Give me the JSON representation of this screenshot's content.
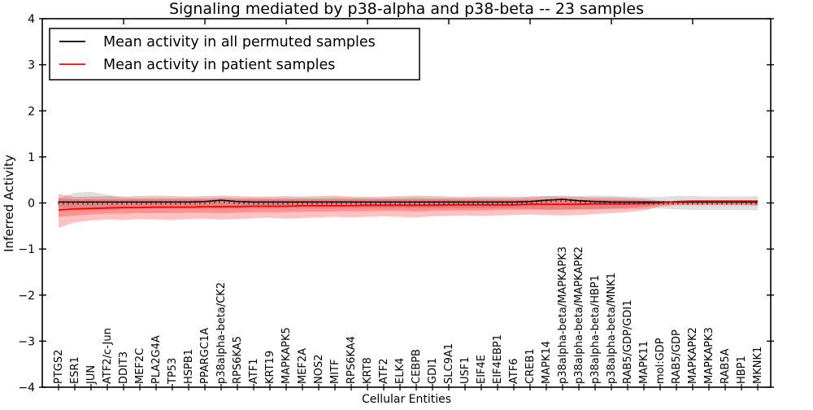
{
  "chart_data": {
    "type": "line",
    "title": "Signaling mediated by p38-alpha and p38-beta -- 23 samples",
    "xlabel": "Cellular Entities",
    "ylabel": "Inferred Activity",
    "ylim": [
      -4,
      4
    ],
    "grid": false,
    "legend_position": "upper left",
    "yticks": [
      {
        "value": 4,
        "label": "4"
      },
      {
        "value": 3,
        "label": "3"
      },
      {
        "value": 2,
        "label": "2"
      },
      {
        "value": 1,
        "label": "1"
      },
      {
        "value": 0,
        "label": "0"
      },
      {
        "value": -1,
        "label": "−1"
      },
      {
        "value": -2,
        "label": "−2"
      },
      {
        "value": -3,
        "label": "−3"
      },
      {
        "value": -4,
        "label": "−4"
      }
    ],
    "categories": [
      "PTGS2",
      "ESR1",
      "JUN",
      "ATF2/c-Jun",
      "DDIT3",
      "MEF2C",
      "PLA2G4A",
      "TP53",
      "HSPB1",
      "PPARGC1A",
      "p38alpha-beta/CK2",
      "RPS6KA5",
      "ATF1",
      "KRT19",
      "MAPKAPK5",
      "MEF2A",
      "NOS2",
      "MITF",
      "RPS6KA4",
      "KRT8",
      "ATF2",
      "ELK4",
      "CEBPB",
      "GDI1",
      "SLC9A1",
      "USF1",
      "EIF4E",
      "EIF4EBP1",
      "ATF6",
      "CREB1",
      "MAPK14",
      "p38alpha-beta/MAPKAPK3",
      "p38alpha-beta/MAPKAPK2",
      "p38alpha-beta/HBP1",
      "p38alpha-beta/MNK1",
      "RAB5/GDP/GDI1",
      "MAPK11",
      "mol:GDP",
      "RAB5/GDP",
      "MAPKAPK2",
      "MAPKAPK3",
      "RAB5A",
      "HBP1",
      "MKNK1"
    ],
    "series": [
      {
        "name": "Mean activity in all permuted samples",
        "color": "#000000",
        "values": [
          0.02,
          0.02,
          0.02,
          0.02,
          0.02,
          0.02,
          0.02,
          0.02,
          0.02,
          0.03,
          0.06,
          0.03,
          0.02,
          0.02,
          0.02,
          0.02,
          0.02,
          0.02,
          0.02,
          0.02,
          0.02,
          0.02,
          0.02,
          0.02,
          0.02,
          0.02,
          0.02,
          0.02,
          0.02,
          0.03,
          0.06,
          0.08,
          0.05,
          0.03,
          0.02,
          0.02,
          0.02,
          0.02,
          0.02,
          0.02,
          0.02,
          0.02,
          0.02,
          0.02
        ]
      },
      {
        "name": "Mean activity in patient samples",
        "color": "#ff0000",
        "values": [
          -0.15,
          -0.13,
          -0.12,
          -0.11,
          -0.1,
          -0.1,
          -0.09,
          -0.09,
          -0.09,
          -0.08,
          -0.08,
          -0.08,
          -0.07,
          -0.07,
          -0.07,
          -0.06,
          -0.06,
          -0.06,
          -0.06,
          -0.05,
          -0.05,
          -0.05,
          -0.05,
          -0.05,
          -0.04,
          -0.04,
          -0.04,
          -0.04,
          -0.04,
          -0.03,
          -0.03,
          -0.03,
          -0.03,
          -0.02,
          -0.02,
          -0.02,
          -0.01,
          0.0,
          0.03,
          0.04,
          0.04,
          0.04,
          0.04,
          0.04
        ]
      }
    ],
    "bands": [
      {
        "name": "permuted-samples-std-band",
        "color": "#c8c8c8",
        "opacity": 0.6,
        "upper": [
          0.1,
          0.22,
          0.24,
          0.18,
          0.12,
          0.11,
          0.11,
          0.11,
          0.11,
          0.11,
          0.12,
          0.11,
          0.11,
          0.11,
          0.11,
          0.11,
          0.11,
          0.12,
          0.11,
          0.11,
          0.11,
          0.11,
          0.12,
          0.11,
          0.11,
          0.11,
          0.11,
          0.11,
          0.11,
          0.13,
          0.15,
          0.16,
          0.15,
          0.16,
          0.15,
          0.14,
          0.13,
          0.13,
          0.15,
          0.15,
          0.14,
          0.14,
          0.14,
          0.15
        ],
        "lower": [
          -0.1,
          -0.13,
          -0.14,
          -0.13,
          -0.12,
          -0.12,
          -0.12,
          -0.12,
          -0.12,
          -0.12,
          -0.12,
          -0.12,
          -0.12,
          -0.12,
          -0.12,
          -0.12,
          -0.12,
          -0.12,
          -0.12,
          -0.12,
          -0.12,
          -0.12,
          -0.12,
          -0.12,
          -0.12,
          -0.12,
          -0.12,
          -0.12,
          -0.12,
          -0.13,
          -0.14,
          -0.14,
          -0.14,
          -0.14,
          -0.14,
          -0.13,
          -0.13,
          -0.12,
          -0.14,
          -0.15,
          -0.15,
          -0.15,
          -0.15,
          -0.16
        ]
      },
      {
        "name": "patient-samples-outer-band",
        "color": "#ff0000",
        "opacity": 0.24,
        "upper": [
          0.2,
          0.13,
          0.14,
          0.15,
          0.14,
          0.15,
          0.16,
          0.15,
          0.14,
          0.15,
          0.16,
          0.15,
          0.14,
          0.14,
          0.15,
          0.14,
          0.15,
          0.16,
          0.14,
          0.13,
          0.14,
          0.15,
          0.16,
          0.15,
          0.14,
          0.13,
          0.14,
          0.14,
          0.13,
          0.14,
          0.15,
          0.14,
          0.13,
          0.12,
          0.12,
          0.11,
          0.09,
          0.05,
          0.04,
          0.04,
          0.04,
          0.04,
          0.04,
          0.05
        ],
        "lower": [
          -0.54,
          -0.42,
          -0.38,
          -0.36,
          -0.37,
          -0.35,
          -0.36,
          -0.37,
          -0.35,
          -0.34,
          -0.36,
          -0.35,
          -0.33,
          -0.32,
          -0.34,
          -0.33,
          -0.31,
          -0.3,
          -0.31,
          -0.3,
          -0.29,
          -0.3,
          -0.31,
          -0.29,
          -0.28,
          -0.27,
          -0.28,
          -0.27,
          -0.26,
          -0.25,
          -0.26,
          -0.27,
          -0.26,
          -0.24,
          -0.22,
          -0.2,
          -0.16,
          -0.08,
          -0.05,
          -0.05,
          -0.05,
          -0.05,
          -0.05,
          -0.06
        ]
      },
      {
        "name": "patient-samples-inner-band",
        "color": "#ff0000",
        "opacity": 0.24,
        "upper": [
          0.1,
          0.08,
          0.08,
          0.08,
          0.08,
          0.08,
          0.08,
          0.08,
          0.08,
          0.08,
          0.09,
          0.08,
          0.08,
          0.08,
          0.08,
          0.08,
          0.08,
          0.08,
          0.08,
          0.08,
          0.08,
          0.08,
          0.08,
          0.08,
          0.08,
          0.07,
          0.07,
          0.07,
          0.07,
          0.07,
          0.08,
          0.08,
          0.07,
          0.07,
          0.06,
          0.06,
          0.05,
          0.03,
          0.02,
          0.02,
          0.02,
          0.02,
          0.02,
          0.02
        ],
        "lower": [
          -0.3,
          -0.27,
          -0.25,
          -0.23,
          -0.23,
          -0.22,
          -0.22,
          -0.22,
          -0.21,
          -0.21,
          -0.22,
          -0.21,
          -0.2,
          -0.2,
          -0.2,
          -0.19,
          -0.19,
          -0.18,
          -0.18,
          -0.18,
          -0.17,
          -0.17,
          -0.18,
          -0.17,
          -0.16,
          -0.16,
          -0.16,
          -0.15,
          -0.15,
          -0.14,
          -0.15,
          -0.15,
          -0.14,
          -0.13,
          -0.12,
          -0.11,
          -0.09,
          -0.05,
          -0.03,
          -0.03,
          -0.03,
          -0.03,
          -0.03,
          -0.04
        ]
      }
    ],
    "colors": {
      "frame": "#000000",
      "background": "#ffffff",
      "error_tick": "#1a1a1a"
    }
  }
}
